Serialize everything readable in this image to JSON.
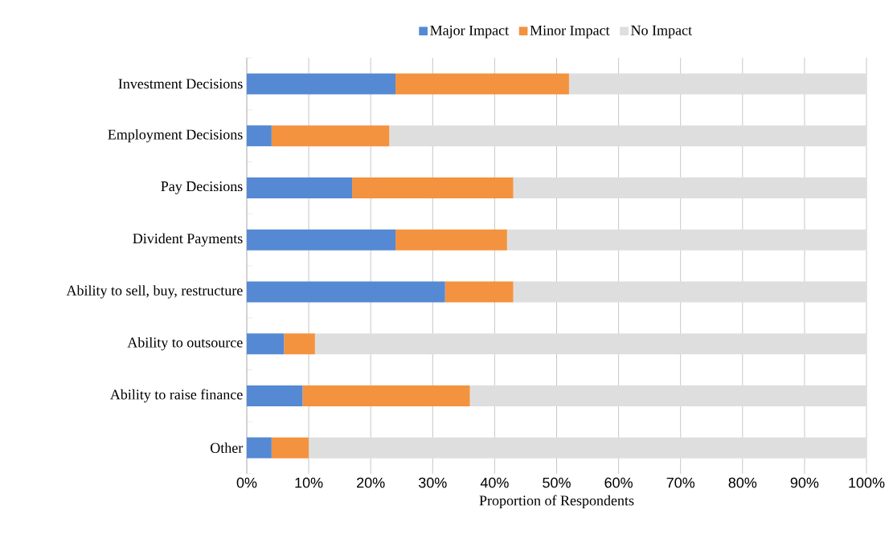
{
  "chart_data": {
    "type": "bar",
    "orientation": "horizontal",
    "stacked": true,
    "categories": [
      "Investment Decisions",
      "Employment Decisions",
      "Pay Decisions",
      "Divident Payments",
      "Ability to sell, buy, restructure",
      "Ability to outsource",
      "Ability to raise finance",
      "Other"
    ],
    "series": [
      {
        "name": "Major Impact",
        "color": "#5589d3",
        "values": [
          24,
          4,
          17,
          24,
          32,
          6,
          9,
          4
        ]
      },
      {
        "name": "Minor Impact",
        "color": "#f3923f",
        "values": [
          28,
          19,
          26,
          18,
          11,
          5,
          27,
          6
        ]
      },
      {
        "name": "No Impact",
        "color": "#dedede",
        "values": [
          48,
          77,
          57,
          58,
          57,
          89,
          64,
          90
        ]
      }
    ],
    "xlim": [
      0,
      100
    ],
    "xticks": [
      {
        "value": 0,
        "label": "0%"
      },
      {
        "value": 10,
        "label": "10%"
      },
      {
        "value": 20,
        "label": "20%"
      },
      {
        "value": 30,
        "label": "30%"
      },
      {
        "value": 40,
        "label": "40%"
      },
      {
        "value": 50,
        "label": "50%"
      },
      {
        "value": 60,
        "label": "60%"
      },
      {
        "value": 70,
        "label": "70%"
      },
      {
        "value": 80,
        "label": "80%"
      },
      {
        "value": 90,
        "label": "90%"
      },
      {
        "value": 100,
        "label": "100%"
      }
    ],
    "xlabel": "Proportion of Respondents",
    "grid": "x",
    "legend": "top"
  }
}
